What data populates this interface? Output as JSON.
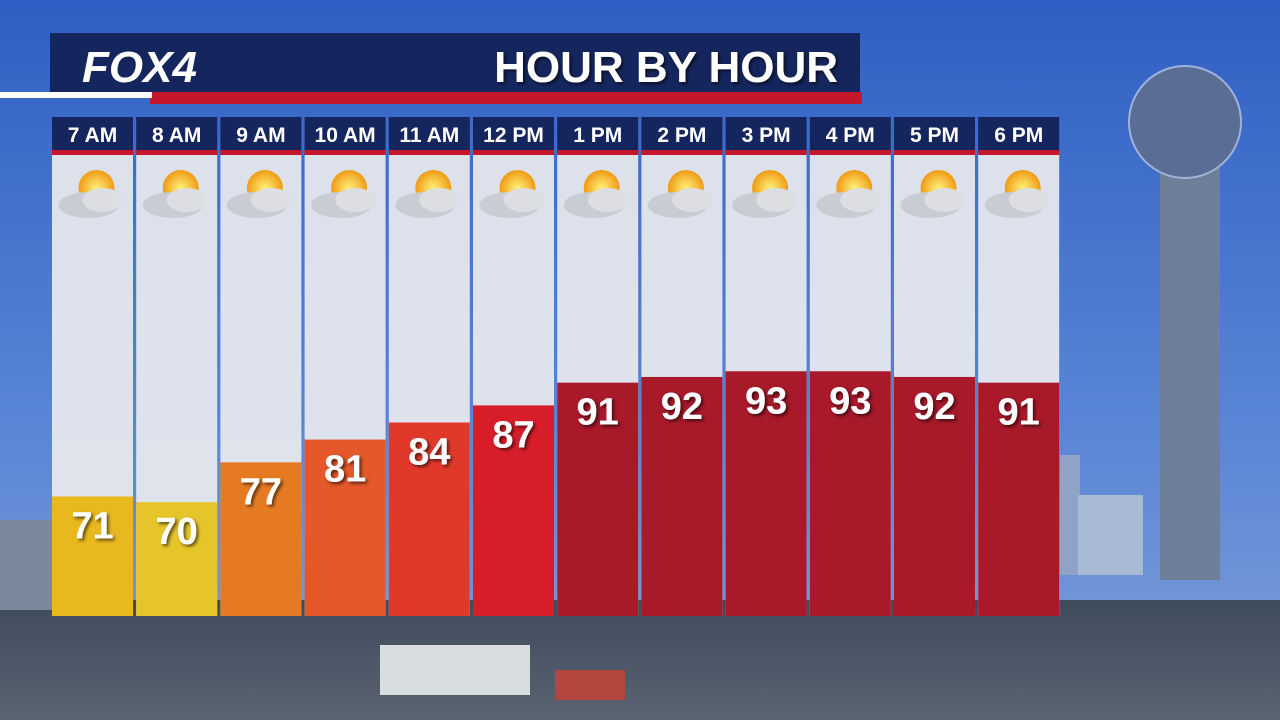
{
  "brand": "FOX4",
  "chart_data": {
    "type": "bar",
    "title": "HOUR BY HOUR",
    "categories": [
      "7 AM",
      "8 AM",
      "9 AM",
      "10 AM",
      "11 AM",
      "12 PM",
      "1 PM",
      "2 PM",
      "3 PM",
      "4 PM",
      "5 PM",
      "6 PM"
    ],
    "values": [
      71,
      70,
      77,
      81,
      84,
      87,
      91,
      92,
      93,
      93,
      92,
      91
    ],
    "colors": [
      "#e9b81e",
      "#e6c52a",
      "#e67a22",
      "#e4582a",
      "#e0392a",
      "#d81d2a",
      "#a8192a",
      "#a8192a",
      "#a8192a",
      "#a8192a",
      "#a8192a",
      "#a8192a"
    ],
    "ylim": [
      50,
      131
    ]
  }
}
